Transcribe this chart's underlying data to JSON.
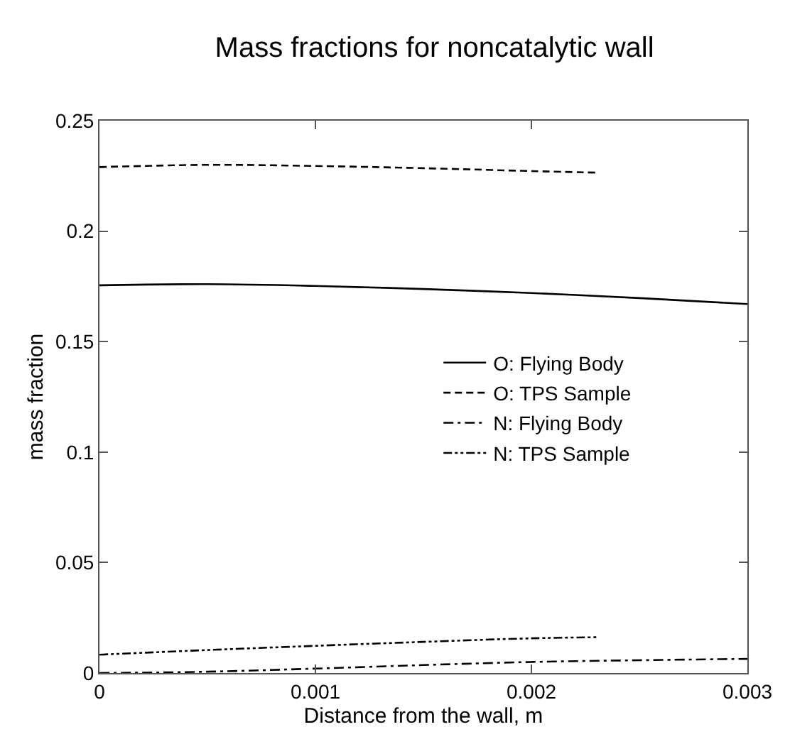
{
  "chart_data": {
    "type": "line",
    "title": "Mass fractions for noncatalytic wall",
    "xlabel": "Distance from the wall, m",
    "ylabel": "mass fraction",
    "xlim": [
      0,
      0.003
    ],
    "xticks": [
      0,
      0.001,
      0.002,
      0.003
    ],
    "ylim": [
      0,
      0.25
    ],
    "yticks": [
      0,
      0.05,
      0.1,
      0.15,
      0.2,
      0.25
    ],
    "legend": "right",
    "marker": "none",
    "series": [
      {
        "name": "O: Flying Body",
        "color": "#000000",
        "line_style": "solid",
        "x": [
          0,
          0.0005,
          0.001,
          0.0015,
          0.002,
          0.0025,
          0.003
        ],
        "values": [
          0.1755,
          0.176,
          0.1752,
          0.1738,
          0.172,
          0.1697,
          0.167
        ]
      },
      {
        "name": "O: TPS Sample",
        "color": "#000000",
        "line_style": "dashed",
        "x": [
          0,
          0.0005,
          0.001,
          0.0015,
          0.002,
          0.0023
        ],
        "values": [
          0.229,
          0.23,
          0.2295,
          0.2285,
          0.2272,
          0.2265
        ]
      },
      {
        "name": "N: Flying Body",
        "color": "#000000",
        "line_style": "dashdot",
        "x": [
          0,
          0.0005,
          0.001,
          0.0015,
          0.002,
          0.0025,
          0.003
        ],
        "values": [
          0.0,
          0.0006,
          0.002,
          0.0036,
          0.005,
          0.0058,
          0.0064
        ]
      },
      {
        "name": "N: TPS Sample",
        "color": "#000000",
        "line_style": "dashdotdot",
        "x": [
          0,
          0.0005,
          0.001,
          0.0015,
          0.002,
          0.0023
        ],
        "values": [
          0.0083,
          0.0104,
          0.0123,
          0.0141,
          0.0157,
          0.0162
        ]
      }
    ]
  }
}
